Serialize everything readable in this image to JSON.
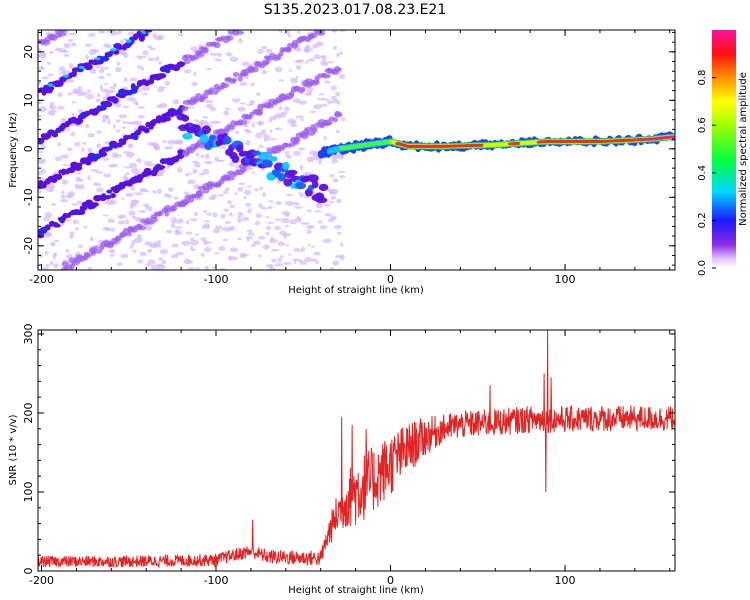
{
  "title": "S135.2023.017.08.23.E21",
  "colors": {
    "snr_line": "#e32222",
    "axes": "#000000",
    "background": "#ffffff"
  },
  "chart_data": [
    {
      "type": "heatmap",
      "xlabel": "Height of straight line (km)",
      "ylabel": "Frequency (Hz)",
      "xlim": [
        -202,
        163
      ],
      "ylim": [
        -25,
        24.5
      ],
      "xticks": [
        -200,
        -100,
        0,
        100
      ],
      "yticks": [
        -20,
        -10,
        0,
        10,
        20
      ],
      "colorbar": {
        "label": "Normalized spectral amplitude",
        "range": [
          0,
          1
        ],
        "ticks": [
          "0.0",
          "0.2",
          "0.4",
          "0.6",
          "0.8"
        ],
        "colormap": "rainbow (white-violet-blue-cyan-green-yellow-red-pink)"
      },
      "features": {
        "main_trace": {
          "x": [
            -40,
            -30,
            -20,
            -10,
            0,
            10,
            30,
            60,
            90,
            120,
            150,
            163
          ],
          "y": [
            -1,
            0,
            0.5,
            1,
            1.5,
            0.5,
            0.5,
            0.8,
            1.5,
            1.5,
            2,
            2.5
          ]
        },
        "diagonal_traces_slope_hz_per_km": 0.2
      }
    },
    {
      "type": "line",
      "xlabel": "Height of straight line (km)",
      "ylabel": "SNR (10 * v/v)",
      "xlim": [
        -202,
        163
      ],
      "ylim": [
        0,
        305
      ],
      "xticks": [
        -200,
        -100,
        0,
        100
      ],
      "yticks": [
        0,
        100,
        200,
        300
      ],
      "trend": {
        "x": [
          -202,
          -150,
          -100,
          -90,
          -80,
          -70,
          -40,
          -35,
          -30,
          -25,
          -20,
          -10,
          0,
          10,
          20,
          30,
          40,
          60,
          80,
          100,
          120,
          140,
          163
        ],
        "y": [
          12,
          12,
          14,
          20,
          25,
          18,
          16,
          50,
          75,
          90,
          100,
          115,
          135,
          155,
          170,
          180,
          185,
          188,
          192,
          192,
          193,
          193,
          193
        ]
      },
      "noise_amplitude": {
        "x": [
          -202,
          -100,
          -40,
          -20,
          0,
          30,
          163
        ],
        "y": [
          7,
          8,
          10,
          45,
          40,
          18,
          16
        ]
      },
      "spikes": [
        {
          "x": -79,
          "y": 65
        },
        {
          "x": -28,
          "y": 195
        },
        {
          "x": -22,
          "y": 185
        },
        {
          "x": -14,
          "y": 180
        },
        {
          "x": 57,
          "y": 235
        },
        {
          "x": 88,
          "y": 250
        },
        {
          "x": 89,
          "y": 100
        },
        {
          "x": 90,
          "y": 305
        },
        {
          "x": 92,
          "y": 245
        }
      ]
    }
  ]
}
